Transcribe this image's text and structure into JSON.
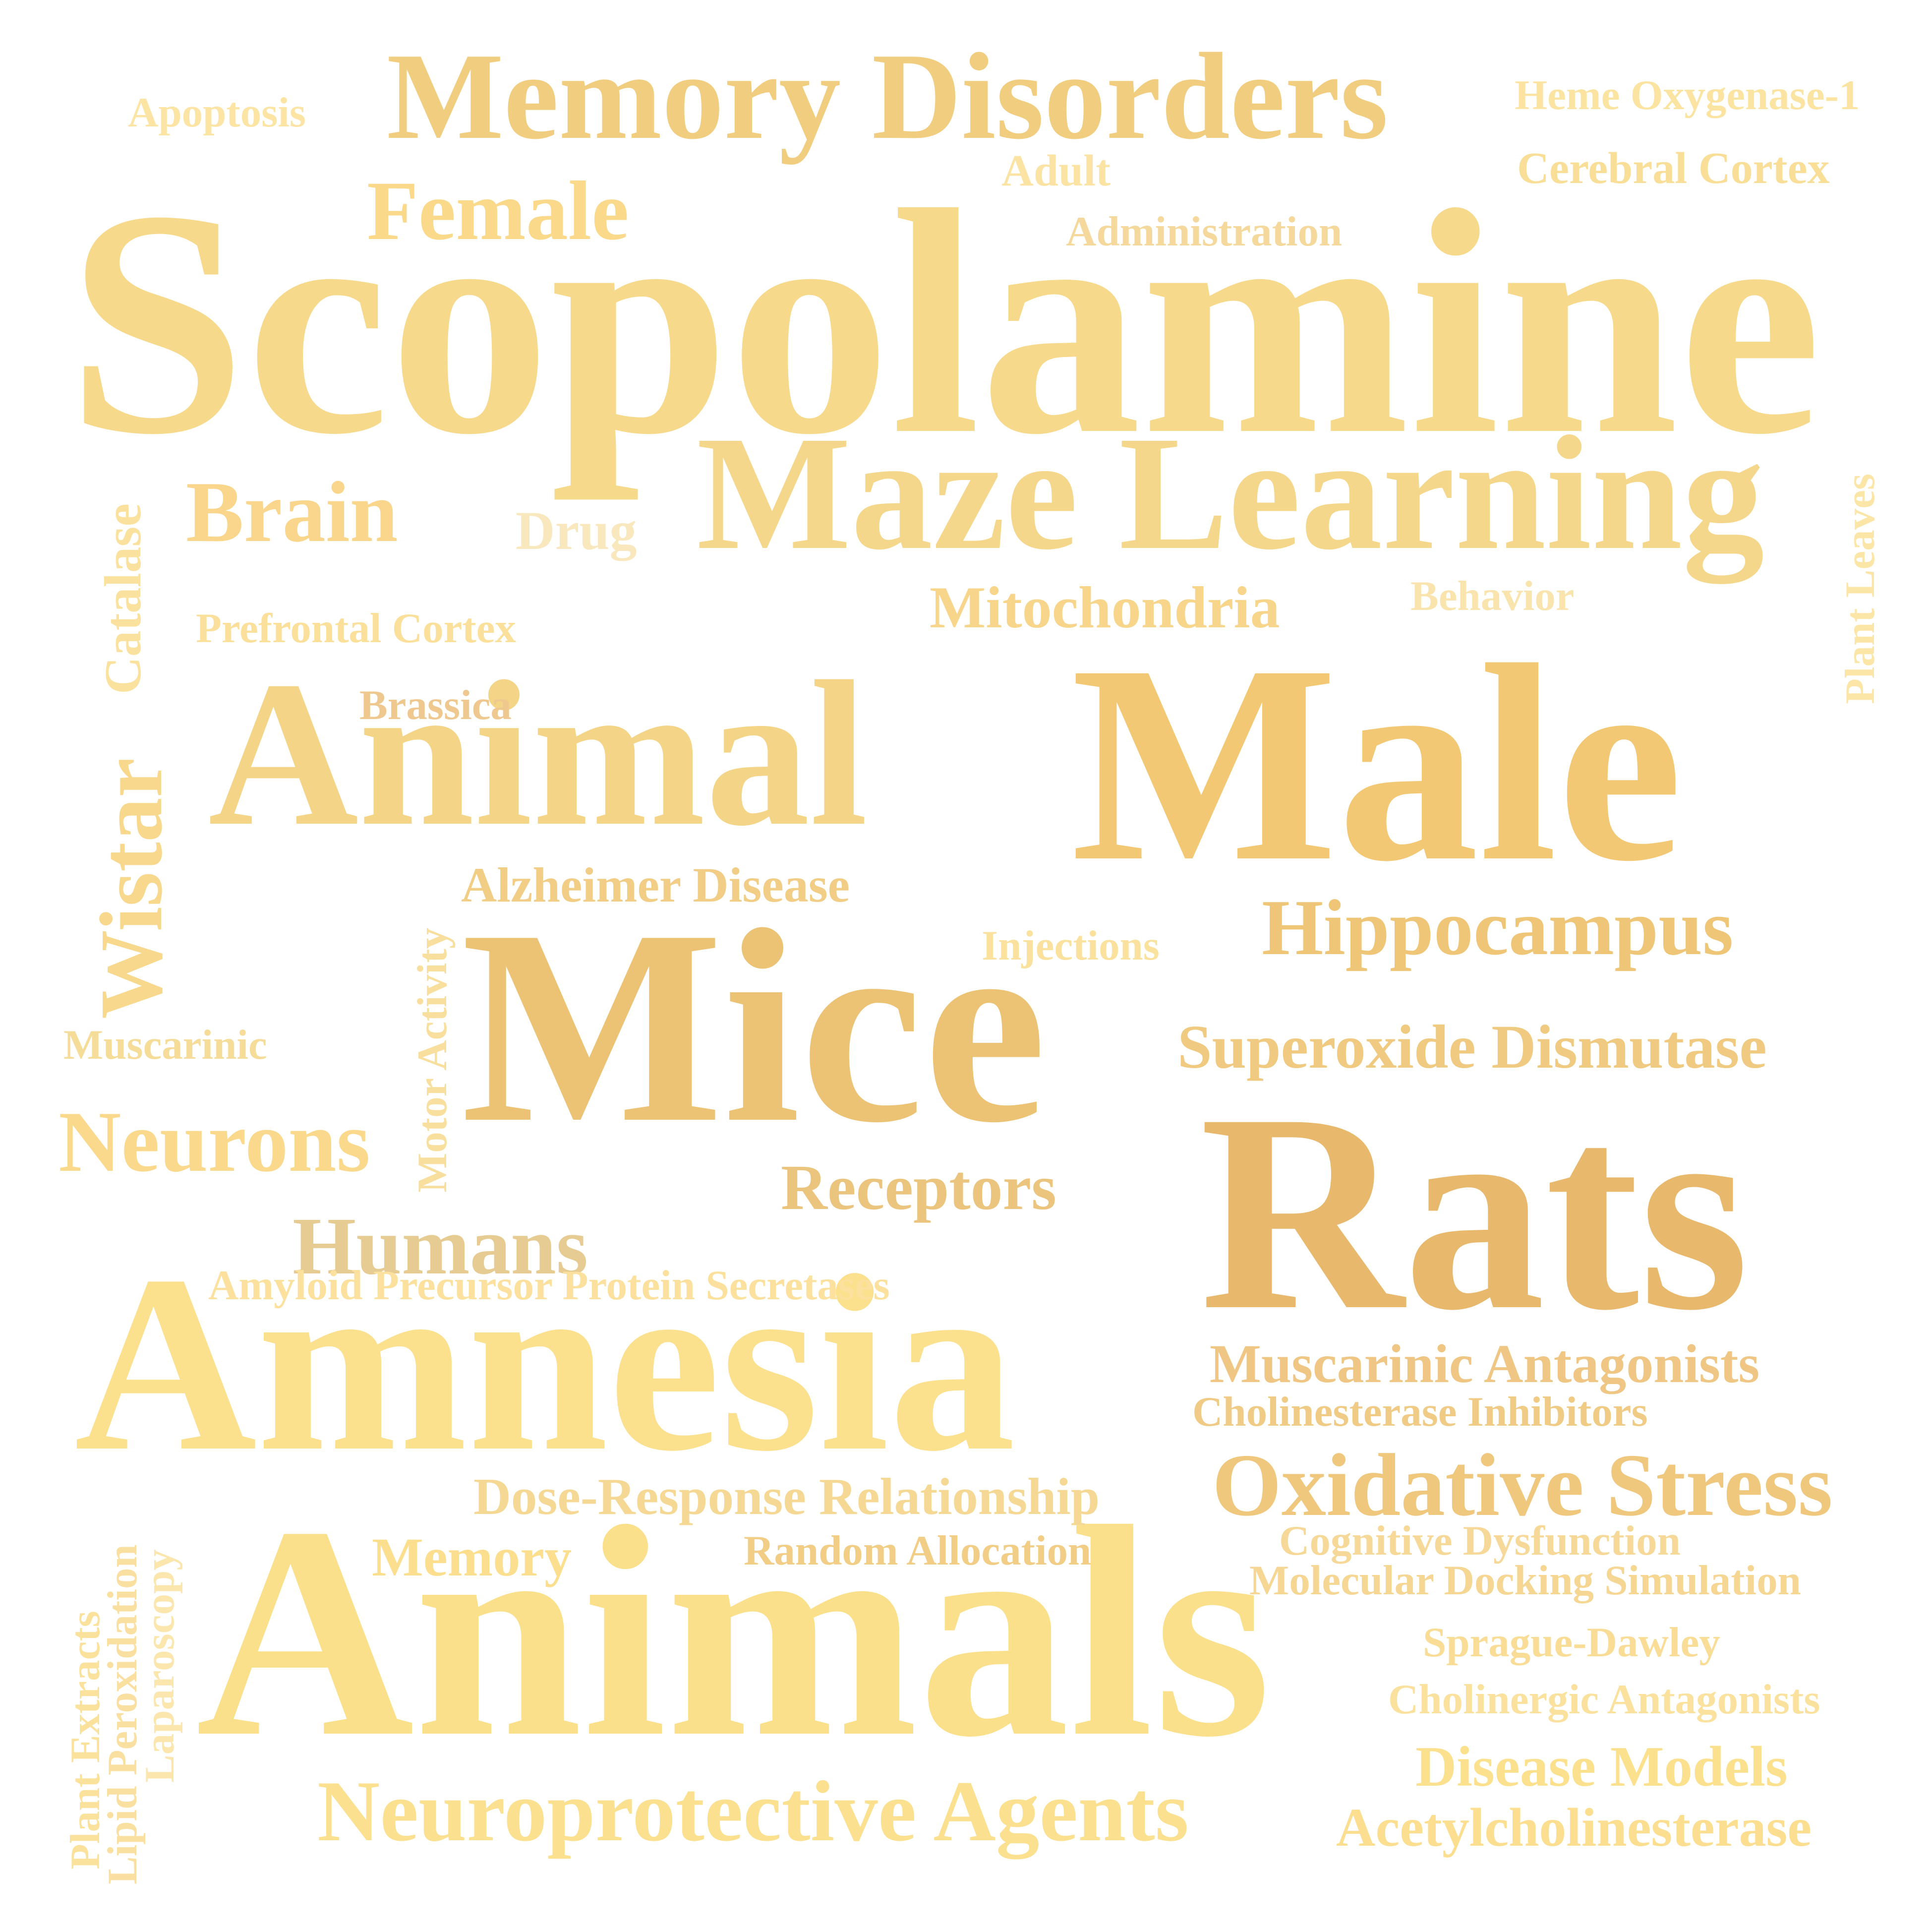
{
  "words": [
    {
      "text": "Scopolamine",
      "color": "#f6d98a"
    },
    {
      "text": "Animals",
      "color": "#fbe08c"
    },
    {
      "text": "Mice",
      "color": "#ecc375"
    },
    {
      "text": "Rats",
      "color": "#e8b86c"
    },
    {
      "text": "Male",
      "color": "#f2c874"
    },
    {
      "text": "Animal",
      "color": "#f4d487"
    },
    {
      "text": "Amnesia",
      "color": "#fbe08e"
    },
    {
      "text": "Maze Learning",
      "color": "#f5d78b"
    },
    {
      "text": "Memory Disorders",
      "color": "#f1cd80"
    },
    {
      "text": "Neuroprotective Agents",
      "color": "#fbe08f"
    },
    {
      "text": "Oxidative Stress",
      "color": "#efc77d"
    },
    {
      "text": "Hippocampus",
      "color": "#efc677"
    },
    {
      "text": "Superoxide Dismutase",
      "color": "#efca80"
    },
    {
      "text": "Female",
      "color": "#fad98b"
    },
    {
      "text": "Brain",
      "color": "#f9d68b"
    },
    {
      "text": "Neurons",
      "color": "#fad98c"
    },
    {
      "text": "Humans",
      "color": "#e6cb92"
    },
    {
      "text": "Receptors",
      "color": "#ebc47e"
    },
    {
      "text": "Muscarinic Antagonists",
      "color": "#efc683"
    },
    {
      "text": "Wistar",
      "color": "#f8d88d"
    },
    {
      "text": "Mitochondria",
      "color": "#f7d58a"
    },
    {
      "text": "Disease Models",
      "color": "#fbe08e"
    },
    {
      "text": "Acetylcholinesterase",
      "color": "#fbde90"
    },
    {
      "text": "Memory",
      "color": "#fbdf8e"
    },
    {
      "text": "Dose-Response Relationship",
      "color": "#f6d895"
    },
    {
      "text": "Alzheimer Disease",
      "color": "#f1cd86"
    },
    {
      "text": "Catalase",
      "color": "#fae19e"
    },
    {
      "text": "Heme Oxygenase-1",
      "color": "#fbe4a2"
    },
    {
      "text": "Cerebral Cortex",
      "color": "#f9de98"
    },
    {
      "text": "Administration",
      "color": "#f5d89b"
    },
    {
      "text": "Adult",
      "color": "#fbe3a3"
    },
    {
      "text": "Apoptosis",
      "color": "#fbe4a4"
    },
    {
      "text": "Drug",
      "color": "#f9e8bd"
    },
    {
      "text": "Behavior",
      "color": "#fae4ad"
    },
    {
      "text": "Plant Leaves",
      "color": "#fbe6a7"
    },
    {
      "text": "Prefrontal Cortex",
      "color": "#fbe09b"
    },
    {
      "text": "Brassica",
      "color": "#efc890"
    },
    {
      "text": "Injections",
      "color": "#fae29e"
    },
    {
      "text": "Motor Activity",
      "color": "#f8df9d"
    },
    {
      "text": "Muscarinic",
      "color": "#f6dc99"
    },
    {
      "text": "Amyloid Precursor Protein Secretases",
      "color": "#fbe19d"
    },
    {
      "text": "Cholinesterase Inhibitors",
      "color": "#f0cb86"
    },
    {
      "text": "Cognitive Dysfunction",
      "color": "#f6d998"
    },
    {
      "text": "Molecular Docking Simulation",
      "color": "#f5d693"
    },
    {
      "text": "Random Allocation",
      "color": "#f1cd86"
    },
    {
      "text": "Sprague-Dawley",
      "color": "#f9dd96"
    },
    {
      "text": "Cholinergic Antagonists",
      "color": "#fae19d"
    },
    {
      "text": "Plant Extracts",
      "color": "#fbe29c"
    },
    {
      "text": "Lipid Peroxidation",
      "color": "#f9dfa0"
    },
    {
      "text": "Laparoscopy",
      "color": "#fbe6ae"
    }
  ]
}
